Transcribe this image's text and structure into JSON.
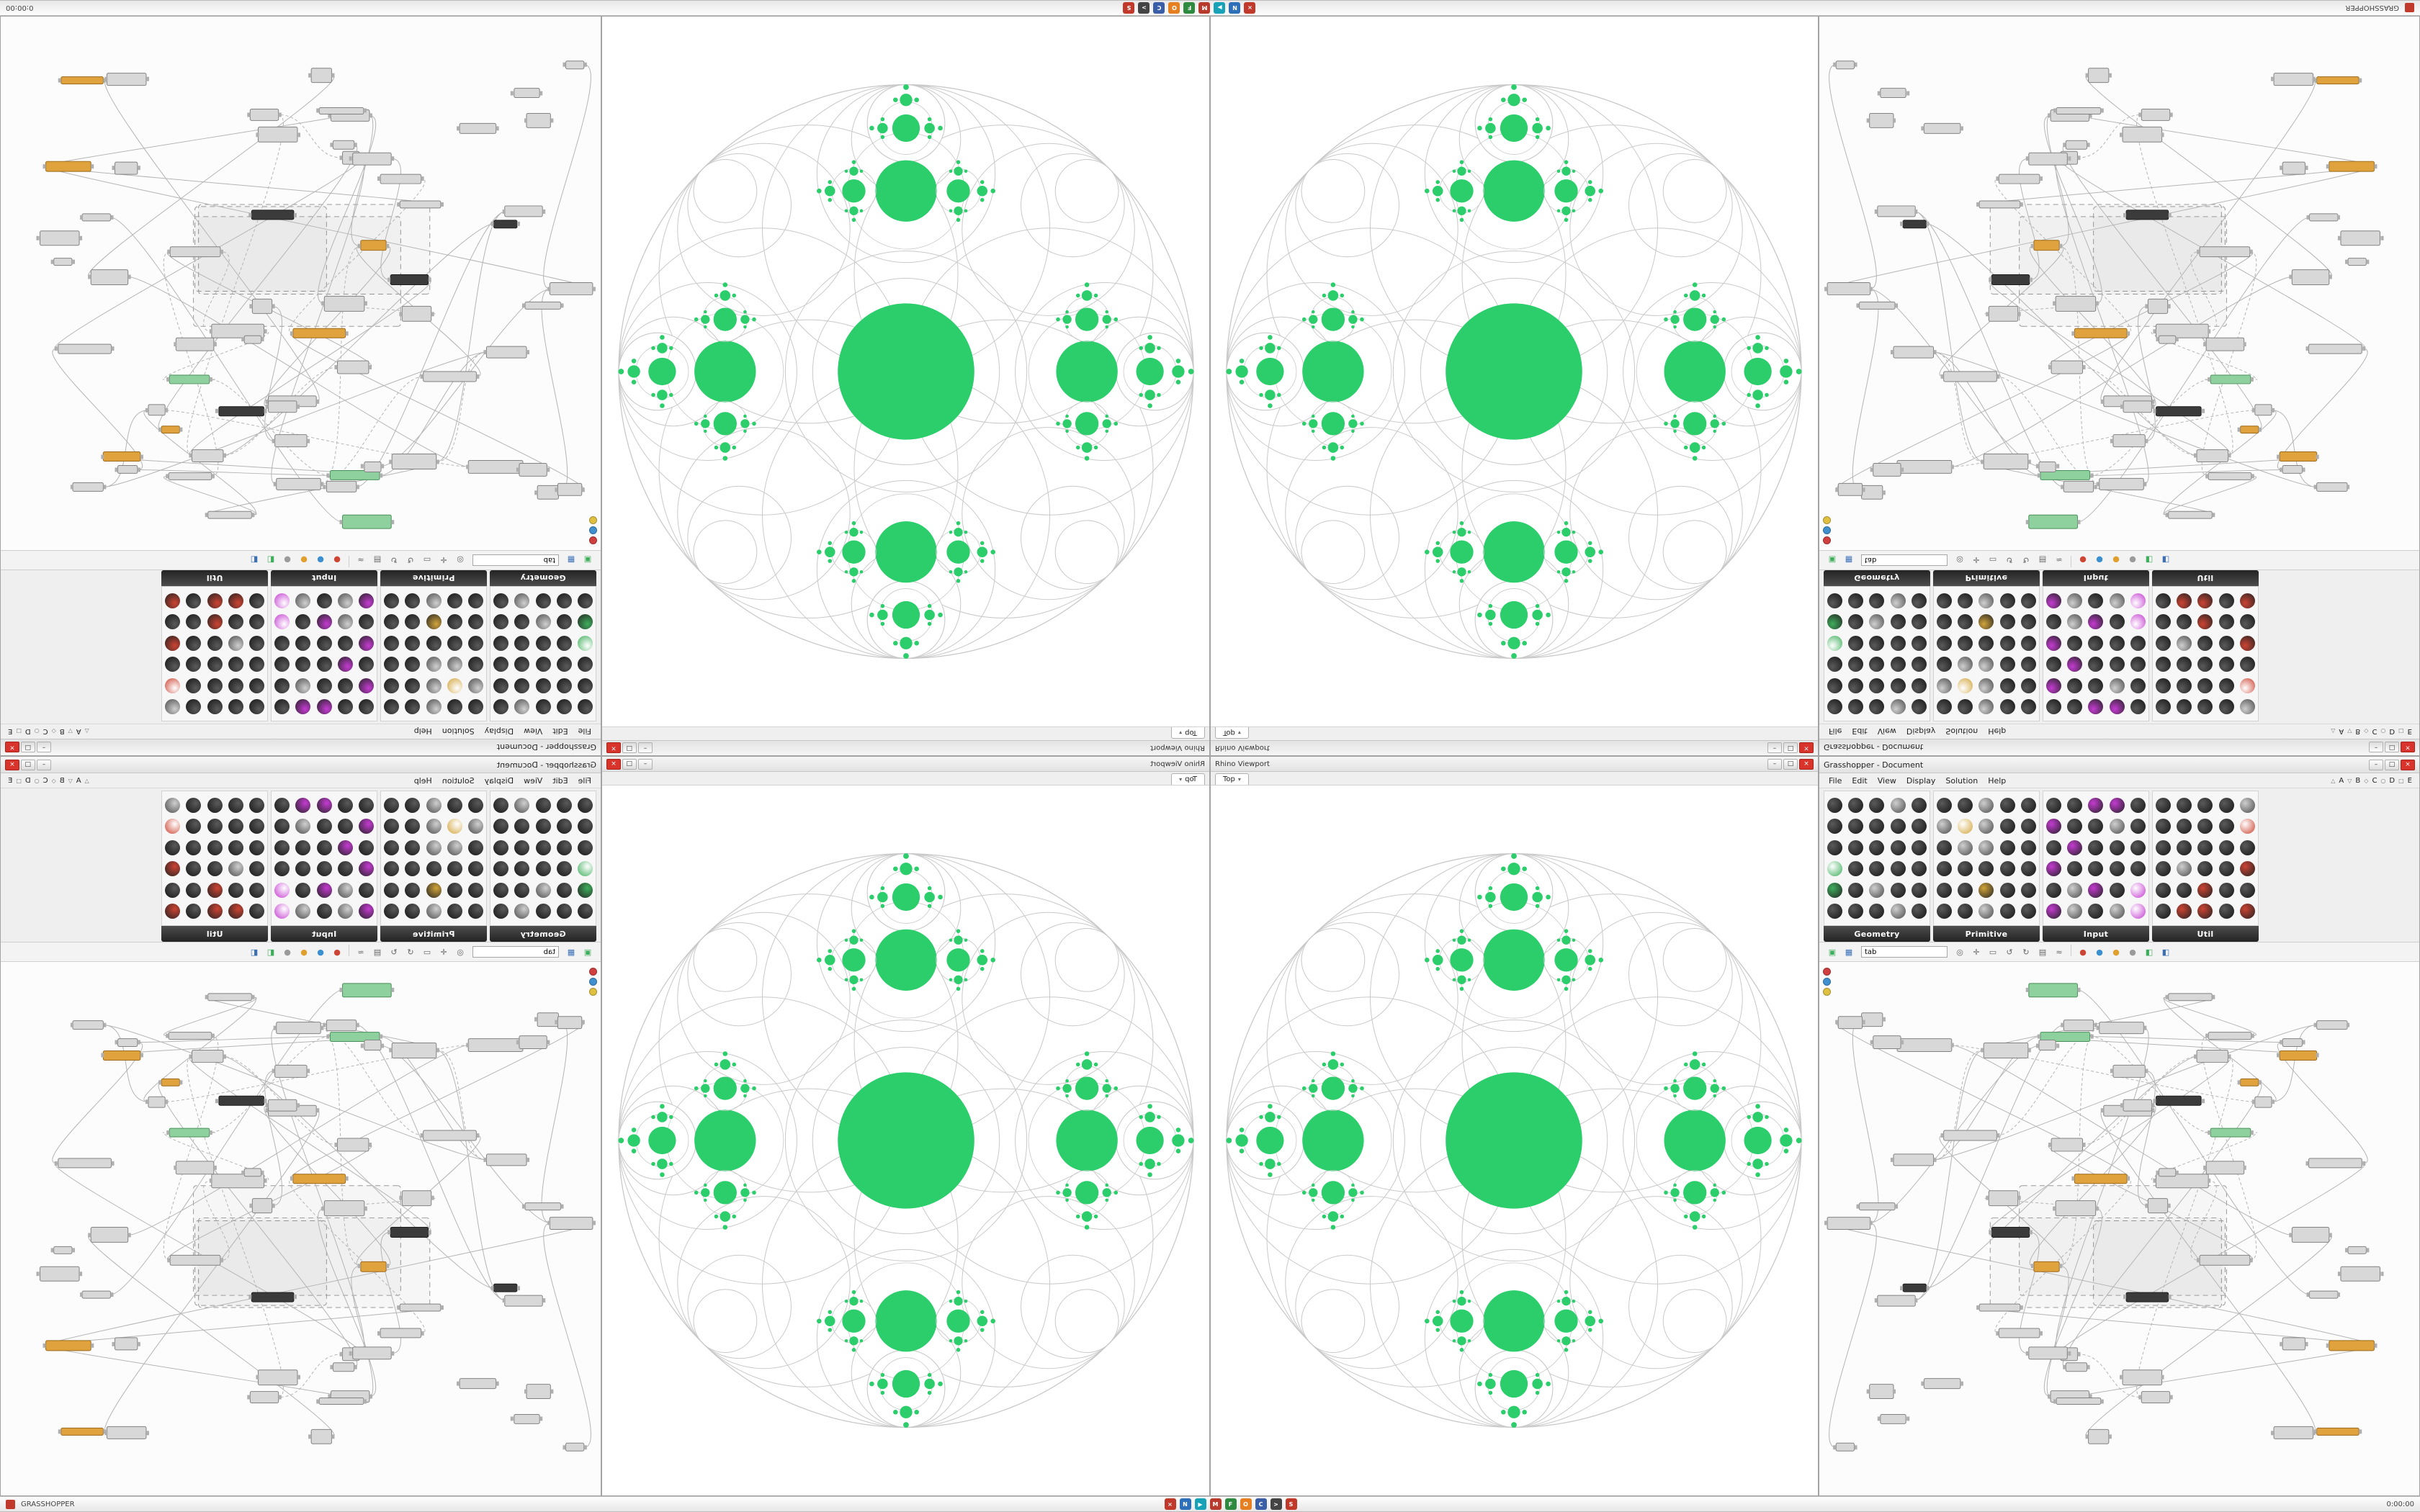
{
  "colors": {
    "accent_green": "#2BCE6B",
    "ring_outline": "#c9c9c9",
    "close_red": "#d9342b",
    "node_gray": "#d8d8d8",
    "node_dark": "#3b3b3b",
    "node_green": "#8fd19e",
    "node_orange": "#e0a23c"
  },
  "taskbar": {
    "left_label": "GRASSHOPPER",
    "right_label": "0:00:00",
    "icons": [
      {
        "name": "close-app-icon",
        "color": "#c0392b",
        "glyph": "×"
      },
      {
        "name": "nav-app-icon",
        "color": "#2d6fb8",
        "glyph": "N"
      },
      {
        "name": "media-app-icon",
        "color": "#17a2b8",
        "glyph": "▶"
      },
      {
        "name": "mail-app-icon",
        "color": "#b83a2d",
        "glyph": "M"
      },
      {
        "name": "files-app-icon",
        "color": "#2d8a3e",
        "glyph": "F"
      },
      {
        "name": "browser-app-icon",
        "color": "#e67e22",
        "glyph": "O"
      },
      {
        "name": "code-app-icon",
        "color": "#3a5fa8",
        "glyph": "C"
      },
      {
        "name": "terminal-app-icon",
        "color": "#444444",
        "glyph": ">"
      },
      {
        "name": "settings-app-icon",
        "color": "#c0392b",
        "glyph": "S"
      }
    ]
  },
  "viewport": {
    "caption": "Rhino Viewport",
    "tab_label": "Top",
    "tab_arrow": "▾",
    "window_buttons": [
      {
        "name": "minimize-button",
        "glyph": "–"
      },
      {
        "name": "maximize-button",
        "glyph": "□"
      },
      {
        "name": "close-button",
        "glyph": "×"
      }
    ]
  },
  "grasshopper": {
    "title": "Grasshopper - Document",
    "menus": [
      "File",
      "Edit",
      "View",
      "Display",
      "Solution",
      "Help"
    ],
    "letter_tabs": [
      {
        "glyph": "△",
        "label": "A"
      },
      {
        "glyph": "▽",
        "label": "B"
      },
      {
        "glyph": "◇",
        "label": "C"
      },
      {
        "glyph": "○",
        "label": "D"
      },
      {
        "glyph": "□",
        "label": "E"
      }
    ],
    "window_buttons": [
      {
        "name": "minimize-button",
        "glyph": "–"
      },
      {
        "name": "maximize-button",
        "glyph": "□"
      },
      {
        "name": "close-button",
        "glyph": "×"
      }
    ],
    "palette_groups": [
      {
        "label": "Geometry",
        "accent": "#3fae5c"
      },
      {
        "label": "Primitive",
        "accent": "#d1a43b"
      },
      {
        "label": "Input",
        "accent": "#c43bd1"
      },
      {
        "label": "Util",
        "accent": "#cc4433"
      }
    ],
    "search_value": "tab",
    "toolbar_icons": [
      {
        "name": "open-file-icon",
        "glyph": "▣",
        "color": "#3fae5c"
      },
      {
        "name": "save-file-icon",
        "glyph": "▦",
        "color": "#3a6fb8"
      },
      {
        "name": "zoom-icon",
        "glyph": "◎",
        "color": "#666666"
      },
      {
        "name": "pan-icon",
        "glyph": "✛",
        "color": "#666666"
      },
      {
        "name": "frame-icon",
        "glyph": "▭",
        "color": "#666666"
      },
      {
        "name": "undo-icon",
        "glyph": "↺",
        "color": "#666666"
      },
      {
        "name": "redo-icon",
        "glyph": "↻",
        "color": "#666666"
      },
      {
        "name": "group-icon",
        "glyph": "▤",
        "color": "#666666"
      },
      {
        "name": "wire-display-icon",
        "glyph": "≈",
        "color": "#666666"
      },
      {
        "name": "preview-red-icon",
        "glyph": "●",
        "color": "#cc4433"
      },
      {
        "name": "preview-blue-icon",
        "glyph": "●",
        "color": "#3a8fd1"
      },
      {
        "name": "preview-orange-icon",
        "glyph": "●",
        "color": "#e0a030"
      },
      {
        "name": "preview-gray-icon",
        "glyph": "●",
        "color": "#9a9a9a"
      },
      {
        "name": "bucket-green-icon",
        "glyph": "◧",
        "color": "#3fae5c"
      },
      {
        "name": "bucket-blue-icon",
        "glyph": "◧",
        "color": "#3a6fb8"
      }
    ]
  },
  "canvas_gen": {
    "seed": 11,
    "node_count": 64,
    "wire_count": 48,
    "group_count": 3
  },
  "fractal": {
    "green": "#2BCE6B",
    "outline": "#c9c9c9",
    "root_ratio": 0.2375,
    "child_ratio": 0.45,
    "root_step": 2.65,
    "step": 2.05,
    "max_depth": 4
  }
}
